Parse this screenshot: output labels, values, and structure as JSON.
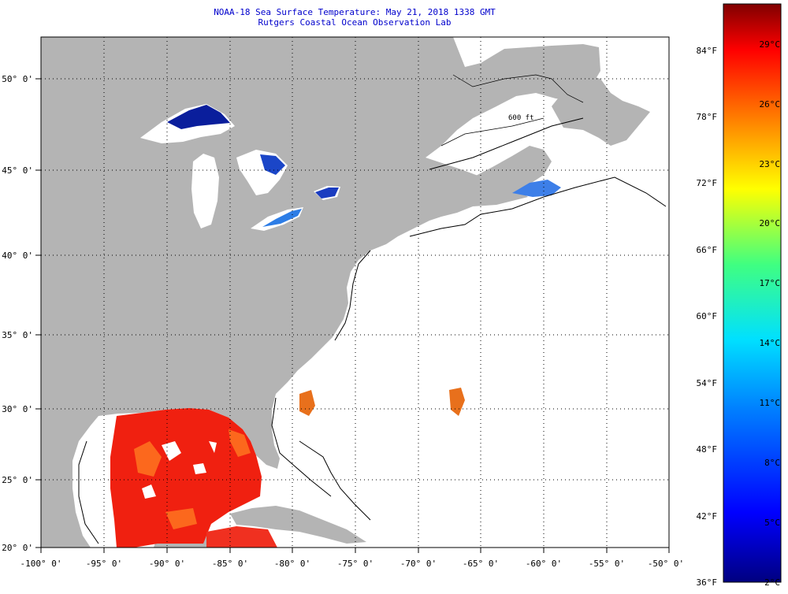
{
  "title": {
    "line1": "NOAA-18 Sea Surface Temperature:  May 21, 2018 1338 GMT",
    "line2": "Rutgers Coastal Ocean Observation Lab"
  },
  "map": {
    "lon_labels": [
      "-100° 0'",
      "-95° 0'",
      "-90° 0'",
      "-85° 0'",
      "-80° 0'",
      "-75° 0'",
      "-70° 0'",
      "-65° 0'",
      "-60° 0'",
      "-55° 0'",
      "-50° 0'"
    ],
    "lat_labels": [
      "50° 0'",
      "45° 0'",
      "40° 0'",
      "35° 0'",
      "30° 0'",
      "25° 0'",
      "20° 0'"
    ],
    "lon_range": [
      -100,
      -50
    ],
    "lat_range": [
      20,
      52.5
    ],
    "bathymetry_label": "600 ft",
    "land_color": "#b4b4b4",
    "no_data_color": "#ffffff"
  },
  "colorbar": {
    "fahrenheit_labels": [
      "84°F",
      "78°F",
      "72°F",
      "66°F",
      "60°F",
      "54°F",
      "48°F",
      "42°F",
      "36°F"
    ],
    "celsius_labels": [
      "29°C",
      "26°C",
      "23°C",
      "20°C",
      "17°C",
      "14°C",
      "11°C",
      "8°C",
      "5°C",
      "2°C"
    ],
    "range_celsius": [
      2,
      31
    ]
  }
}
